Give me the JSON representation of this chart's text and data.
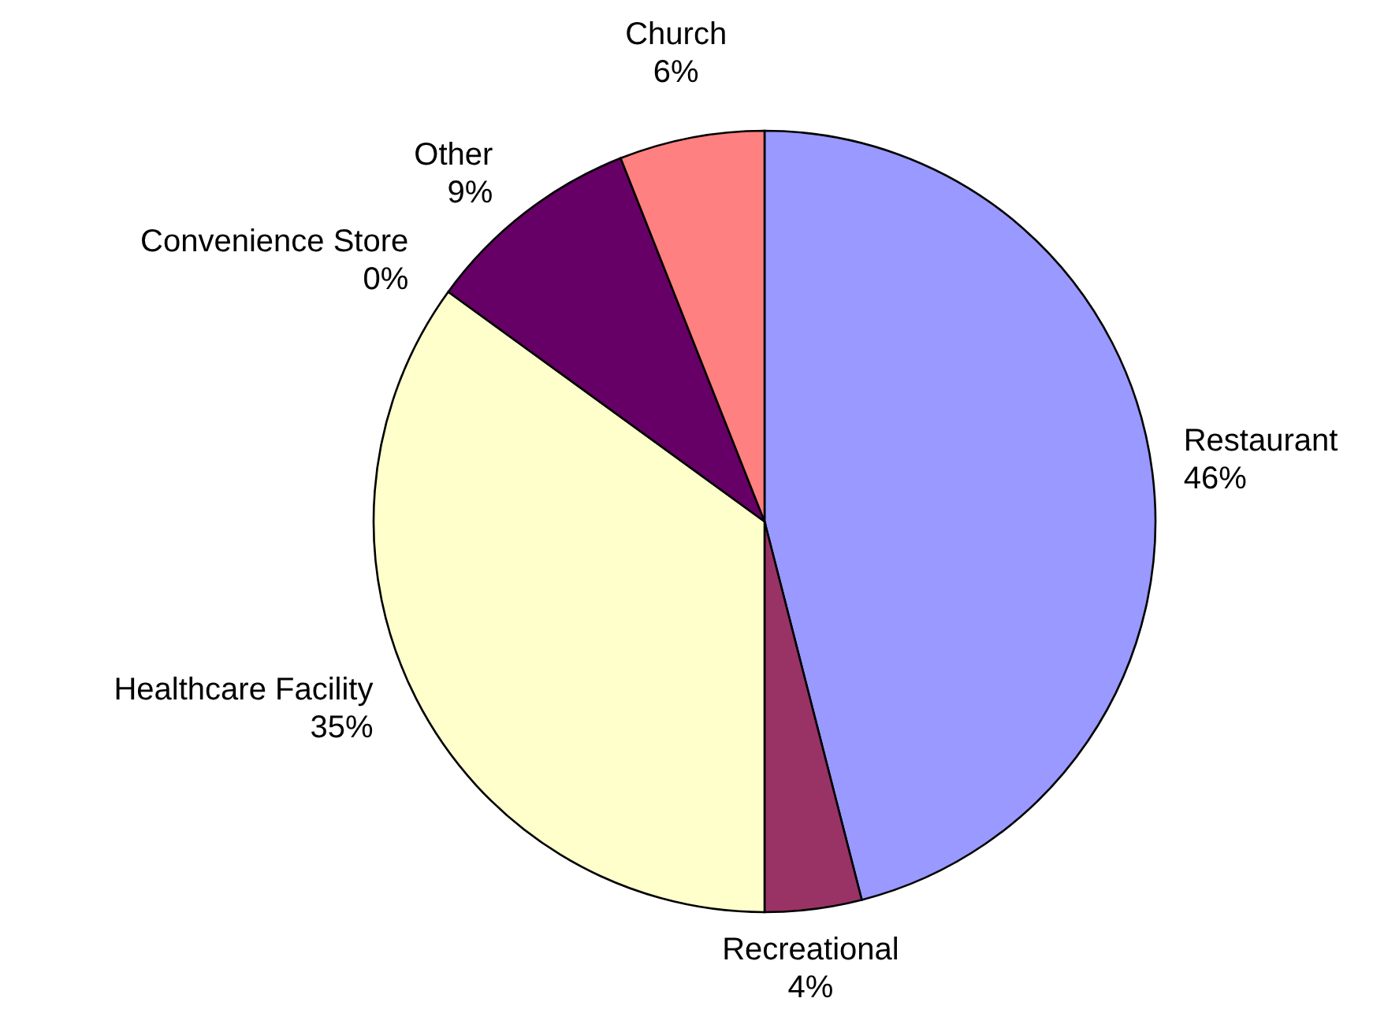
{
  "chart_data": {
    "type": "pie",
    "categories": [
      "Restaurant",
      "Recreational",
      "Healthcare Facility",
      "Convenience Store",
      "Other",
      "Church"
    ],
    "values": [
      46,
      4,
      35,
      0,
      9,
      6
    ],
    "value_labels": [
      "46%",
      "4%",
      "35%",
      "0%",
      "9%",
      "6%"
    ],
    "colors": [
      "#9999ff",
      "#993366",
      "#ffffcc",
      "#ccffff",
      "#660066",
      "#ff8080"
    ]
  }
}
